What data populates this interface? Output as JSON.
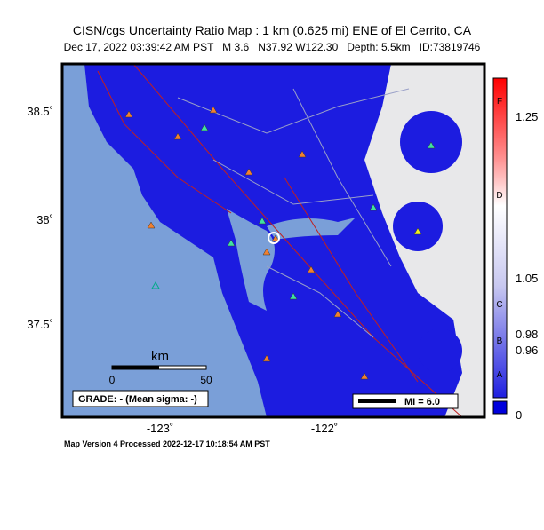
{
  "header": {
    "title": "CISN/cgs Uncertainty Ratio Map : 1 km (0.625 mi) ENE of El Cerrito, CA",
    "subtitle": "Dec 17, 2022 03:39:42 AM PST   M 3.6   N37.92 W122.30   Depth: 5.5km   ID:73819746"
  },
  "map": {
    "lat_labels": [
      "38.5˚",
      "38˚",
      "37.5˚"
    ],
    "lon_labels": [
      "-123˚",
      "-122˚"
    ],
    "scale_bar": {
      "unit": "km",
      "labels": [
        "0",
        "50"
      ]
    },
    "grade": "GRADE: - (Mean sigma: -)",
    "mi_legend": "MI = 6.0"
  },
  "colorbar": {
    "letters": [
      "F",
      "D",
      "C",
      "B",
      "A"
    ],
    "labels": [
      "1.25",
      "1.05",
      "0.98",
      "0.96",
      "0"
    ]
  },
  "footer": "Map Version 4 Processed 2022-12-17 10:18:54 AM PST"
}
